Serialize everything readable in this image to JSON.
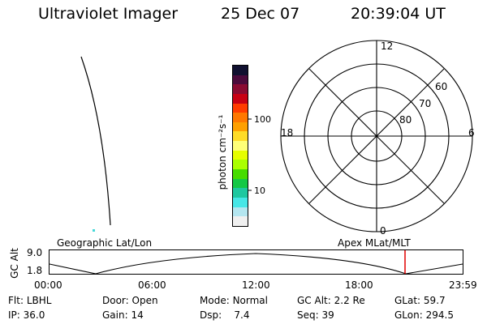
{
  "header": {
    "instrument": "Ultraviolet Imager",
    "date": "25 Dec 07",
    "time": "20:39:04 UT"
  },
  "colorbar": {
    "unit": "photon cm⁻²s⁻¹",
    "ticks": [
      "100",
      "10"
    ],
    "colors": [
      "#101030",
      "#4b0a3c",
      "#8a0a32",
      "#c80014",
      "#ff3c00",
      "#ff7800",
      "#ffa000",
      "#ffdc28",
      "#ffff78",
      "#e6ff00",
      "#aaff00",
      "#46dc00",
      "#14c846",
      "#1ec8a0",
      "#46e6e6",
      "#b4e6f0",
      "#f0f0f0"
    ]
  },
  "polar": {
    "mlt_labels": {
      "top": "12",
      "right": "6",
      "bottom": "0",
      "left": "18"
    },
    "lat_labels": [
      "60",
      "70",
      "80"
    ]
  },
  "labels": {
    "left_map": "Geographic Lat/Lon",
    "right_map": "Apex MLat/MLT"
  },
  "alt_plot": {
    "axis_label": "GC Alt",
    "y_ticks": [
      "9.0",
      "1.8"
    ],
    "x_ticks": [
      "00:00",
      "06:00",
      "12:00",
      "18:00",
      "23:59"
    ],
    "marker_color": "#e00000"
  },
  "info": {
    "row1": {
      "flt_label": "Flt:",
      "flt": "LBHL",
      "door_label": "Door:",
      "door": "Open",
      "mode_label": "Mode:",
      "mode": "Normal",
      "gcalt_label": "GC Alt:",
      "gcalt": "2.2 Re",
      "glat_label": "GLat:",
      "glat": "59.7"
    },
    "row2": {
      "ip_label": "IP:",
      "ip": "36.0",
      "gain_label": "Gain:",
      "gain": "14",
      "dsp_label": "Dsp:",
      "dsp": "7.4",
      "seq_label": "Seq:",
      "seq": "39",
      "glon_label": "GLon:",
      "glon": "294.5"
    }
  }
}
